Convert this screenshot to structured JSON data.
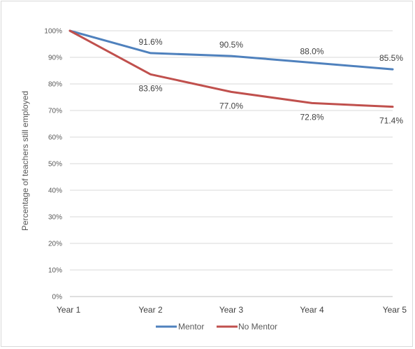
{
  "chart_data": {
    "type": "line",
    "title": "",
    "xlabel": "",
    "ylabel": "Percentage of teachers still employed",
    "categories": [
      "Year 1",
      "Year 2",
      "Year 3",
      "Year 4",
      "Year 5"
    ],
    "ylim": [
      0,
      100
    ],
    "yticks": [
      "0%",
      "10%",
      "20%",
      "30%",
      "40%",
      "50%",
      "60%",
      "70%",
      "80%",
      "90%",
      "100%"
    ],
    "grid": true,
    "legend_position": "bottom",
    "series": [
      {
        "name": "Mentor",
        "color": "#4f81bd",
        "values": [
          100,
          91.6,
          90.5,
          88.0,
          85.5
        ],
        "labels": [
          "",
          "91.6%",
          "90.5%",
          "88.0%",
          "85.5%"
        ]
      },
      {
        "name": "No Mentor",
        "color": "#c0504d",
        "values": [
          100,
          83.6,
          77.0,
          72.8,
          71.4
        ],
        "labels": [
          "",
          "83.6%",
          "77.0%",
          "72.8%",
          "71.4%"
        ]
      }
    ]
  }
}
